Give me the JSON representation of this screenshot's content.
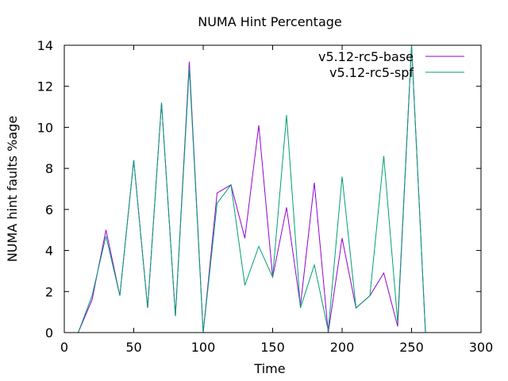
{
  "chart_data": {
    "type": "line",
    "title": "NUMA Hint Percentage",
    "xlabel": "Time",
    "ylabel": "NUMA hint faults %age",
    "xlim": [
      0,
      300
    ],
    "ylim": [
      0,
      14
    ],
    "xticks": [
      0,
      50,
      100,
      150,
      200,
      250,
      300
    ],
    "yticks": [
      0,
      2,
      4,
      6,
      8,
      10,
      12,
      14
    ],
    "grid": false,
    "legend_position": "top-right",
    "series": [
      {
        "name": "v5.12-rc5-base",
        "color": "#9400d3",
        "x": [
          10,
          20,
          30,
          40,
          50,
          60,
          70,
          80,
          90,
          100,
          110,
          120,
          130,
          140,
          150,
          160,
          170,
          180,
          190,
          200,
          210,
          220,
          230,
          240,
          250,
          260
        ],
        "y": [
          0,
          1.6,
          5.0,
          1.8,
          8.4,
          1.2,
          11.2,
          0.8,
          13.2,
          0.0,
          6.8,
          7.2,
          4.6,
          10.1,
          2.7,
          6.1,
          1.3,
          7.3,
          0.0,
          4.6,
          1.2,
          1.8,
          2.9,
          0.3,
          14.0,
          0.0
        ]
      },
      {
        "name": "v5.12-rc5-spf",
        "color": "#009e73",
        "x": [
          10,
          20,
          30,
          40,
          50,
          60,
          70,
          80,
          90,
          100,
          110,
          120,
          130,
          140,
          150,
          160,
          170,
          180,
          190,
          200,
          210,
          220,
          230,
          240,
          250,
          260
        ],
        "y": [
          0,
          1.8,
          4.7,
          1.8,
          8.4,
          1.2,
          11.2,
          0.8,
          12.9,
          0.0,
          6.3,
          7.2,
          2.3,
          4.2,
          2.7,
          10.6,
          1.2,
          3.3,
          0.1,
          7.6,
          1.2,
          1.8,
          8.6,
          0.5,
          14.0,
          0.0
        ]
      }
    ]
  }
}
